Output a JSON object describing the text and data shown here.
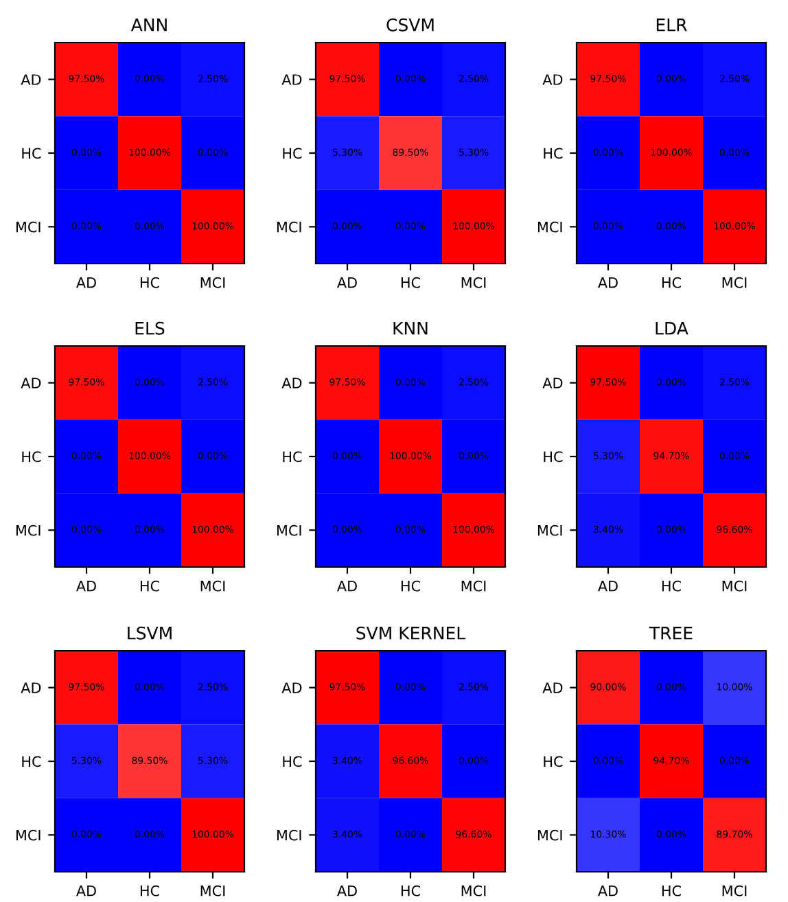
{
  "chart_data": [
    {
      "type": "heatmap",
      "title": "ANN",
      "categories": [
        "AD",
        "HC",
        "MCI"
      ],
      "y_categories": [
        "AD",
        "HC",
        "MCI"
      ],
      "colors": [
        "#0000ff",
        "#ffffff",
        "#ff0000"
      ],
      "cells": [
        [
          97.5,
          0.0,
          2.5
        ],
        [
          0.0,
          100.0,
          0.0
        ],
        [
          0.0,
          0.0,
          100.0
        ]
      ],
      "cell_labels": [
        [
          "97.50%",
          "0.00%",
          "2.50%"
        ],
        [
          "0.00%",
          "100.00%",
          "0.00%"
        ],
        [
          "0.00%",
          "0.00%",
          "100.00%"
        ]
      ]
    },
    {
      "type": "heatmap",
      "title": "CSVM",
      "categories": [
        "AD",
        "HC",
        "MCI"
      ],
      "y_categories": [
        "AD",
        "HC",
        "MCI"
      ],
      "colors": [
        "#0000ff",
        "#ffffff",
        "#ff0000"
      ],
      "cells": [
        [
          97.5,
          0.0,
          2.5
        ],
        [
          5.3,
          89.5,
          5.3
        ],
        [
          0.0,
          0.0,
          100.0
        ]
      ],
      "cell_labels": [
        [
          "97.50%",
          "0.00%",
          "2.50%"
        ],
        [
          "5.30%",
          "89.50%",
          "5.30%"
        ],
        [
          "0.00%",
          "0.00%",
          "100.00%"
        ]
      ]
    },
    {
      "type": "heatmap",
      "title": "ELR",
      "categories": [
        "AD",
        "HC",
        "MCI"
      ],
      "y_categories": [
        "AD",
        "HC",
        "MCI"
      ],
      "colors": [
        "#0000ff",
        "#ffffff",
        "#ff0000"
      ],
      "cells": [
        [
          97.5,
          0.0,
          2.5
        ],
        [
          0.0,
          100.0,
          0.0
        ],
        [
          0.0,
          0.0,
          100.0
        ]
      ],
      "cell_labels": [
        [
          "97.50%",
          "0.00%",
          "2.50%"
        ],
        [
          "0.00%",
          "100.00%",
          "0.00%"
        ],
        [
          "0.00%",
          "0.00%",
          "100.00%"
        ]
      ]
    },
    {
      "type": "heatmap",
      "title": "ELS",
      "categories": [
        "AD",
        "HC",
        "MCI"
      ],
      "y_categories": [
        "AD",
        "HC",
        "MCI"
      ],
      "colors": [
        "#0000ff",
        "#ffffff",
        "#ff0000"
      ],
      "cells": [
        [
          97.5,
          0.0,
          2.5
        ],
        [
          0.0,
          100.0,
          0.0
        ],
        [
          0.0,
          0.0,
          100.0
        ]
      ],
      "cell_labels": [
        [
          "97.50%",
          "0.00%",
          "2.50%"
        ],
        [
          "0.00%",
          "100.00%",
          "0.00%"
        ],
        [
          "0.00%",
          "0.00%",
          "100.00%"
        ]
      ]
    },
    {
      "type": "heatmap",
      "title": "KNN",
      "categories": [
        "AD",
        "HC",
        "MCI"
      ],
      "y_categories": [
        "AD",
        "HC",
        "MCI"
      ],
      "colors": [
        "#0000ff",
        "#ffffff",
        "#ff0000"
      ],
      "cells": [
        [
          97.5,
          0.0,
          2.5
        ],
        [
          0.0,
          100.0,
          0.0
        ],
        [
          0.0,
          0.0,
          100.0
        ]
      ],
      "cell_labels": [
        [
          "97.50%",
          "0.00%",
          "2.50%"
        ],
        [
          "0.00%",
          "100.00%",
          "0.00%"
        ],
        [
          "0.00%",
          "0.00%",
          "100.00%"
        ]
      ]
    },
    {
      "type": "heatmap",
      "title": "LDA",
      "categories": [
        "AD",
        "HC",
        "MCI"
      ],
      "y_categories": [
        "AD",
        "HC",
        "MCI"
      ],
      "colors": [
        "#0000ff",
        "#ffffff",
        "#ff0000"
      ],
      "cells": [
        [
          97.5,
          0.0,
          2.5
        ],
        [
          5.3,
          94.7,
          0.0
        ],
        [
          3.4,
          0.0,
          96.6
        ]
      ],
      "cell_labels": [
        [
          "97.50%",
          "0.00%",
          "2.50%"
        ],
        [
          "5.30%",
          "94.70%",
          "0.00%"
        ],
        [
          "3.40%",
          "0.00%",
          "96.60%"
        ]
      ]
    },
    {
      "type": "heatmap",
      "title": "LSVM",
      "categories": [
        "AD",
        "HC",
        "MCI"
      ],
      "y_categories": [
        "AD",
        "HC",
        "MCI"
      ],
      "colors": [
        "#0000ff",
        "#ffffff",
        "#ff0000"
      ],
      "cells": [
        [
          97.5,
          0.0,
          2.5
        ],
        [
          5.3,
          89.5,
          5.3
        ],
        [
          0.0,
          0.0,
          100.0
        ]
      ],
      "cell_labels": [
        [
          "97.50%",
          "0.00%",
          "2.50%"
        ],
        [
          "5.30%",
          "89.50%",
          "5.30%"
        ],
        [
          "0.00%",
          "0.00%",
          "100.00%"
        ]
      ]
    },
    {
      "type": "heatmap",
      "title": "SVM KERNEL",
      "categories": [
        "AD",
        "HC",
        "MCI"
      ],
      "y_categories": [
        "AD",
        "HC",
        "MCI"
      ],
      "colors": [
        "#0000ff",
        "#ffffff",
        "#ff0000"
      ],
      "cells": [
        [
          97.5,
          0.0,
          2.5
        ],
        [
          3.4,
          96.6,
          0.0
        ],
        [
          3.4,
          0.0,
          96.6
        ]
      ],
      "cell_labels": [
        [
          "97.50%",
          "0.00%",
          "2.50%"
        ],
        [
          "3.40%",
          "96.60%",
          "0.00%"
        ],
        [
          "3.40%",
          "0.00%",
          "96.60%"
        ]
      ]
    },
    {
      "type": "heatmap",
      "title": "TREE",
      "categories": [
        "AD",
        "HC",
        "MCI"
      ],
      "y_categories": [
        "AD",
        "HC",
        "MCI"
      ],
      "colors": [
        "#0000ff",
        "#ffffff",
        "#ff0000"
      ],
      "cells": [
        [
          90.0,
          0.0,
          10.0
        ],
        [
          0.0,
          94.7,
          0.0
        ],
        [
          10.3,
          0.0,
          89.7
        ]
      ],
      "cell_labels": [
        [
          "90.00%",
          "0.00%",
          "10.00%"
        ],
        [
          "0.00%",
          "94.70%",
          "0.00%"
        ],
        [
          "10.30%",
          "0.00%",
          "89.70%"
        ]
      ]
    }
  ]
}
